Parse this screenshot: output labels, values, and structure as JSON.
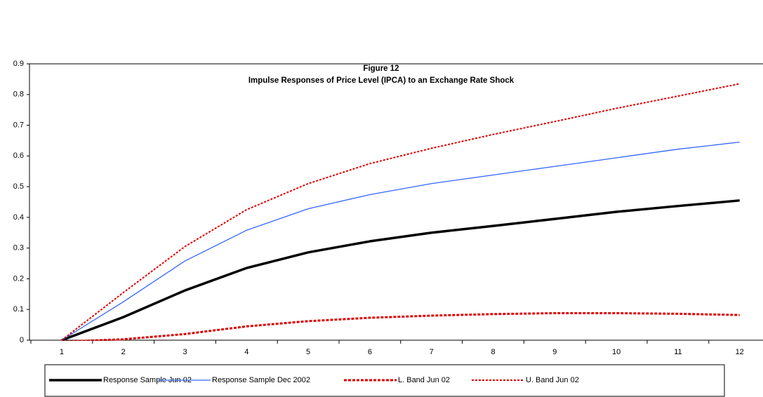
{
  "chart_data": {
    "type": "line",
    "title": "Figure 12",
    "subtitle": "Impulse Responses of Price Level (IPCA) to an Exchange Rate Shock",
    "categories": [
      "1",
      "2",
      "3",
      "4",
      "5",
      "6",
      "7",
      "8",
      "9",
      "10",
      "11",
      "12"
    ],
    "ylim": [
      0,
      0.9
    ],
    "yticks": [
      0,
      0.1,
      0.2,
      0.3,
      0.4,
      0.5,
      0.6,
      0.7,
      0.8,
      0.9
    ],
    "grid": false,
    "legend": "bottom",
    "series": [
      {
        "name": "Response Sample Jun 02",
        "color": "#000000",
        "width": 3.5,
        "dashed": false,
        "values": [
          0,
          0.075,
          0.162,
          0.235,
          0.286,
          0.322,
          0.35,
          0.372,
          0.395,
          0.418,
          0.437,
          0.455
        ]
      },
      {
        "name": "Response Sample Dec 2002",
        "color": "#3366ff",
        "width": 1.3,
        "dashed": false,
        "values": [
          0,
          0.125,
          0.258,
          0.358,
          0.428,
          0.474,
          0.51,
          0.538,
          0.566,
          0.594,
          0.622,
          0.645
        ]
      },
      {
        "name": "L. Band Jun 02",
        "color": "#dd0000",
        "width": 3,
        "dashed": true,
        "values": [
          -0.005,
          0.003,
          0.02,
          0.045,
          0.062,
          0.073,
          0.08,
          0.085,
          0.088,
          0.088,
          0.086,
          0.082
        ]
      },
      {
        "name": "U. Band Jun 02",
        "color": "#dd0000",
        "width": 2,
        "dashed": true,
        "values": [
          0,
          0.155,
          0.305,
          0.425,
          0.51,
          0.575,
          0.625,
          0.67,
          0.712,
          0.755,
          0.795,
          0.835
        ]
      }
    ]
  }
}
